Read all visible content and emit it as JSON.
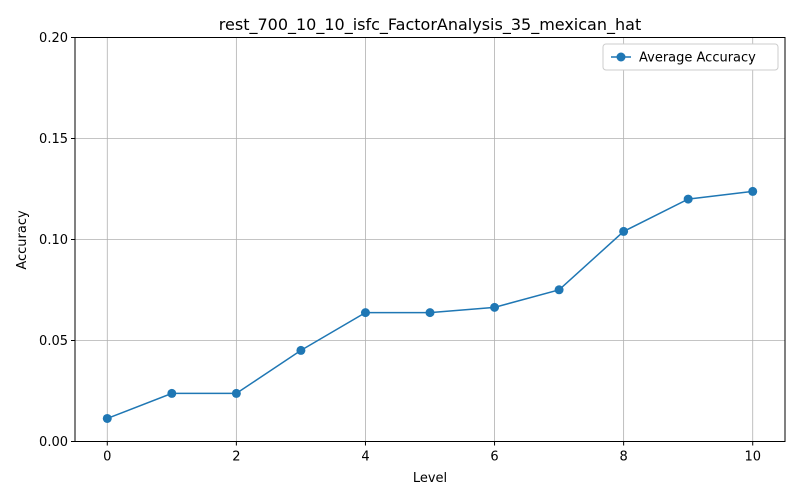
{
  "chart_data": {
    "type": "line",
    "title": "rest_700_10_10_isfc_FactorAnalysis_35_mexican_hat",
    "xlabel": "Level",
    "ylabel": "Accuracy",
    "xlim": [
      -0.5,
      10.5
    ],
    "ylim": [
      0,
      0.2
    ],
    "x_ticks": [
      0,
      2,
      4,
      6,
      8,
      10
    ],
    "x_tick_labels": [
      "0",
      "2",
      "4",
      "6",
      "8",
      "10"
    ],
    "y_ticks": [
      0,
      0.05,
      0.1,
      0.15,
      0.2
    ],
    "y_tick_labels": [
      "0.00",
      "0.05",
      "0.10",
      "0.15",
      "0.20"
    ],
    "grid": true,
    "legend_position": "top-right",
    "series": [
      {
        "name": "Average Accuracy",
        "color": "#1f77b4",
        "marker": "circle",
        "x": [
          0,
          1,
          2,
          3,
          4,
          5,
          6,
          7,
          8,
          9,
          10
        ],
        "y": [
          0.0114,
          0.0238,
          0.0238,
          0.0451,
          0.0638,
          0.0638,
          0.0664,
          0.0751,
          0.104,
          0.12,
          0.1238
        ]
      }
    ]
  }
}
